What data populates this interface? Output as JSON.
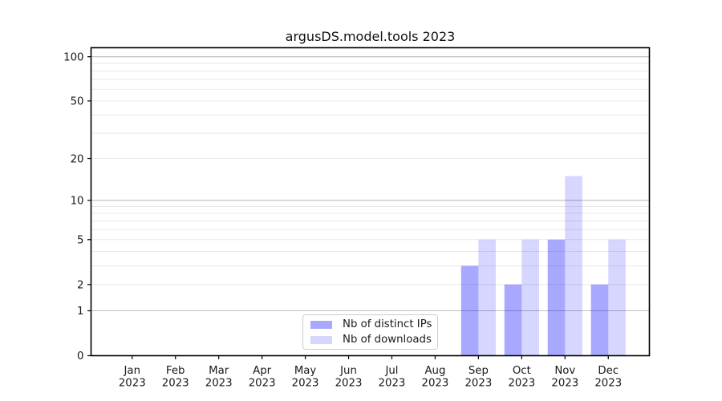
{
  "title": "argusDS.model.tools 2023",
  "chart_data": {
    "type": "bar",
    "title": "argusDS.model.tools 2023",
    "categories": [
      "Jan 2023",
      "Feb 2023",
      "Mar 2023",
      "Apr 2023",
      "May 2023",
      "Jun 2023",
      "Jul 2023",
      "Aug 2023",
      "Sep 2023",
      "Oct 2023",
      "Nov 2023",
      "Dec 2023"
    ],
    "series": [
      {
        "name": "Nb of distinct IPs",
        "color": "rgba(0,0,255,0.34)",
        "values": [
          0,
          0,
          0,
          0,
          0,
          0,
          0,
          0,
          3,
          2,
          5,
          2
        ]
      },
      {
        "name": "Nb of downloads",
        "color": "rgba(0,0,255,0.16)",
        "values": [
          0,
          0,
          0,
          0,
          0,
          0,
          0,
          0,
          5,
          5,
          15,
          5
        ]
      }
    ],
    "xlabel": "",
    "ylabel": "",
    "yscale": "log1p",
    "ylim": [
      0,
      115
    ],
    "yticks": [
      0,
      1,
      2,
      5,
      10,
      20,
      50,
      100
    ],
    "grid": {
      "major_lines": [
        1,
        10,
        100
      ],
      "minor_lines": [
        2,
        3,
        4,
        5,
        6,
        7,
        8,
        9,
        20,
        30,
        40,
        50,
        60,
        70,
        80,
        90
      ],
      "major_color": "#bdbdbd",
      "minor_color": "#e9e9e9"
    },
    "legend_position": "lower center",
    "axis_color": "#000000",
    "text_color": "#1a1a1a"
  }
}
